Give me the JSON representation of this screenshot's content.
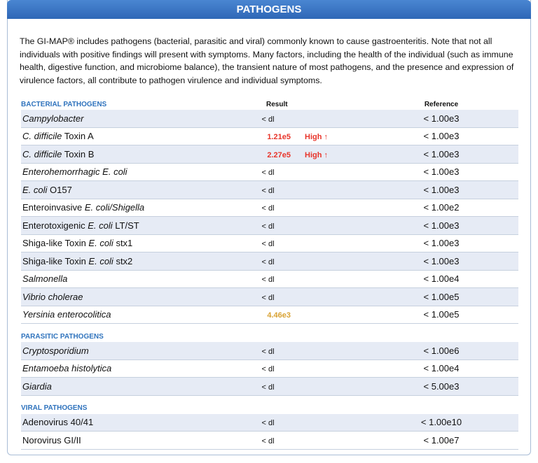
{
  "header": {
    "title": "PATHOGENS"
  },
  "intro": "The GI-MAP® includes pathogens (bacterial, parasitic and viral) commonly known to cause gastroenteritis. Note that not all individuals with positive findings will present with symptoms. Many factors, including the health of the individual (such as immune health, digestive function, and microbiome balance), the transient nature of most pathogens, and the presence and expression of virulence factors, all contribute to pathogen virulence and individual symptoms.",
  "columns": {
    "result": "Result",
    "reference": "Reference"
  },
  "sections": [
    {
      "title": "BACTERIAL PATHOGENS",
      "rows": [
        {
          "name": [
            {
              "text": "Campylobacter",
              "italic": true
            }
          ],
          "result": "< dl",
          "reference": "< 1.00e3"
        },
        {
          "name": [
            {
              "text": "C. difficile",
              "italic": true
            },
            {
              "text": " Toxin A",
              "italic": false
            }
          ],
          "result": "1.21e5",
          "flag": "High ↑",
          "color": "#e8352b",
          "reference": "< 1.00e3"
        },
        {
          "name": [
            {
              "text": "C. difficile",
              "italic": true
            },
            {
              "text": " Toxin B",
              "italic": false
            }
          ],
          "result": "2.27e5",
          "flag": "High ↑",
          "color": "#e8352b",
          "reference": "< 1.00e3"
        },
        {
          "name": [
            {
              "text": "Enterohemorrhagic E. coli",
              "italic": true
            }
          ],
          "result": "< dl",
          "reference": "< 1.00e3"
        },
        {
          "name": [
            {
              "text": "E. coli",
              "italic": true
            },
            {
              "text": " O157",
              "italic": false
            }
          ],
          "result": "< dl",
          "reference": "< 1.00e3"
        },
        {
          "name": [
            {
              "text": "Enteroinvasive ",
              "italic": false
            },
            {
              "text": "E. coli/Shigella",
              "italic": true
            }
          ],
          "result": "< dl",
          "reference": "< 1.00e2"
        },
        {
          "name": [
            {
              "text": "Enterotoxigenic ",
              "italic": false
            },
            {
              "text": "E. coli",
              "italic": true
            },
            {
              "text": " LT/ST",
              "italic": false
            }
          ],
          "result": "< dl",
          "reference": "< 1.00e3"
        },
        {
          "name": [
            {
              "text": "Shiga-like Toxin ",
              "italic": false
            },
            {
              "text": "E. coli",
              "italic": true
            },
            {
              "text": " stx1",
              "italic": false
            }
          ],
          "result": "< dl",
          "reference": "< 1.00e3"
        },
        {
          "name": [
            {
              "text": "Shiga-like Toxin ",
              "italic": false
            },
            {
              "text": "E. coli",
              "italic": true
            },
            {
              "text": " stx2",
              "italic": false
            }
          ],
          "result": "< dl",
          "reference": "< 1.00e3"
        },
        {
          "name": [
            {
              "text": "Salmonella",
              "italic": true
            }
          ],
          "result": "< dl",
          "reference": "< 1.00e4"
        },
        {
          "name": [
            {
              "text": "Vibrio cholerae",
              "italic": true
            }
          ],
          "result": "< dl",
          "reference": "< 1.00e5"
        },
        {
          "name": [
            {
              "text": "Yersinia enterocolitica",
              "italic": true
            }
          ],
          "result": "4.46e3",
          "color": "#d9a233",
          "reference": "< 1.00e5"
        }
      ]
    },
    {
      "title": "PARASITIC PATHOGENS",
      "rows": [
        {
          "name": [
            {
              "text": "Cryptosporidium",
              "italic": true
            }
          ],
          "result": "< dl",
          "reference": "< 1.00e6"
        },
        {
          "name": [
            {
              "text": "Entamoeba histolytica",
              "italic": true
            }
          ],
          "result": "< dl",
          "reference": "< 1.00e4"
        },
        {
          "name": [
            {
              "text": "Giardia",
              "italic": true
            }
          ],
          "result": "< dl",
          "reference": "< 5.00e3"
        }
      ]
    },
    {
      "title": "VIRAL PATHOGENS",
      "rows": [
        {
          "name": [
            {
              "text": "Adenovirus 40/41",
              "italic": false
            }
          ],
          "result": "< dl",
          "reference": "< 1.00e10"
        },
        {
          "name": [
            {
              "text": "Norovirus GI/II",
              "italic": false
            }
          ],
          "result": "< dl",
          "reference": "< 1.00e7"
        }
      ]
    }
  ]
}
